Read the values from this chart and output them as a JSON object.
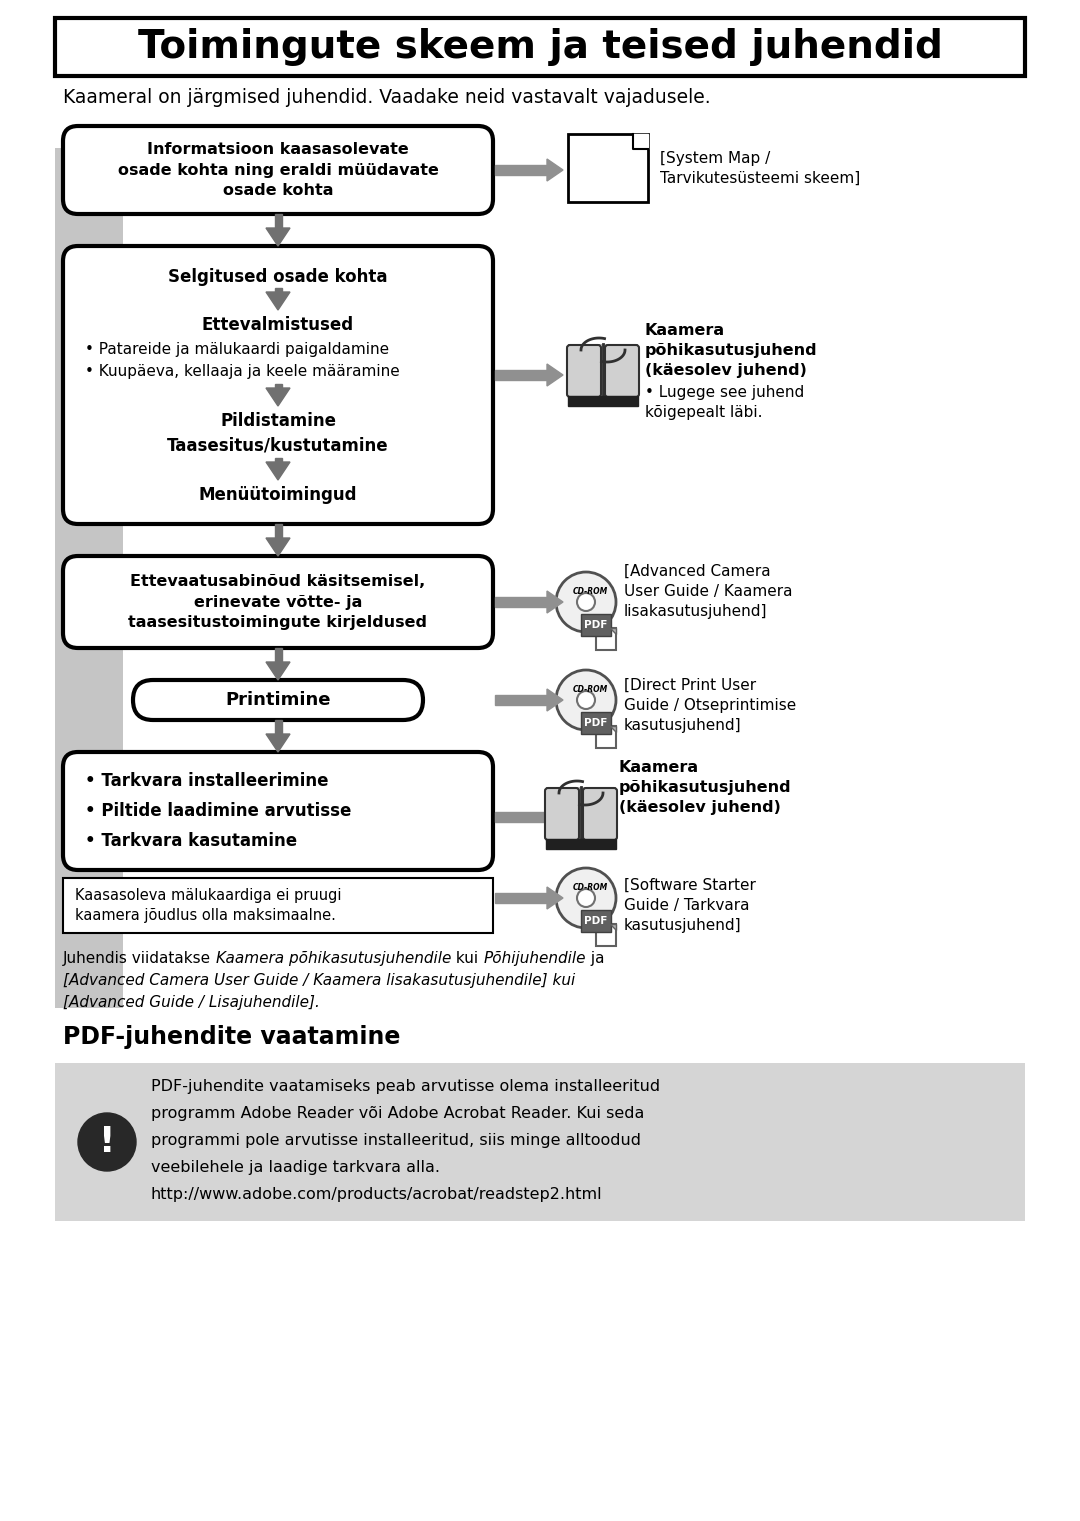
{
  "title": "Toimingute skeem ja teised juhendid",
  "subtitle": "Kaameral on järgmised juhendid. Vaadake neid vastavalt vajadusele.",
  "box1_text": "Informatsioon kaasasolevate\nosade kohta ning eraldi müüdavate\nosade kohta",
  "system_map_text": "[System Map /\nTarvikutesüsteemi skeem]",
  "box2_line1": "Selgitused osade kohta",
  "box2_line2": "Ettevalmistused",
  "box2_line3": "• Patareide ja mälukaardi paigaldamine",
  "box2_line4": "• Kuupäeva, kellaaja ja keele määramine",
  "box2_line5": "Pildistamine",
  "box2_line6": "Taasesitus/kustutamine",
  "box2_line7": "Menüütoimingud",
  "book1_bold": "Kaamera\npõhikasutusjuhend\n(käesolev juhend)",
  "book1_normal": "• Lugege see juhend\nkõigepealt läbi.",
  "box3_text": "Ettevaatusabinõud käsitsemisel,\nerinevate võtte- ja\ntaasesitustoimingute kirjeldused",
  "cdrom1_text": "[Advanced Camera\nUser Guide / Kaamera\nlisakasutusjuhend]",
  "box4_text": "Printimine",
  "cdrom2_text": "[Direct Print User\nGuide / Otseprintimise\nkasutusjuhend]",
  "box5_line1": "• Tarkvara installeerimine",
  "box5_line2": "• Piltide laadimine arvutisse",
  "box5_line3": "• Tarkvara kasutamine",
  "book2_bold": "Kaamera\npõhikasutusjuhend\n(käesolev juhend)",
  "cdrom3_text": "[Software Starter\nGuide / Tarkvara\nkasutusjuhend]",
  "note_text": "Kaasasoleva mälukaardiga ei pruugi\nkaamera jõudlus olla maksimaalne.",
  "footer_line1_normal": "Juhendis viidatakse ",
  "footer_line1_italic": "Kaamera põhikasutusjuhendile",
  "footer_line1_normal2": " kui ",
  "footer_line1_italic2": "Põhijuhendile",
  "footer_line1_normal3": " ja",
  "footer_line2_italic": "[Advanced Camera User Guide / Kaamera lisakasutusjuhendile]",
  "footer_line2_normal": " kui",
  "footer_line3_italic": "[Advanced Guide / Lisajuhendile]",
  "footer_line3_normal": ".",
  "pdf_title": "PDF-juhendite vaatamine",
  "pdf_text_line1": "PDF-juhendite vaatamiseks peab arvutisse olema installeeritud",
  "pdf_text_line2": "programm Adobe Reader või Adobe Acrobat Reader. Kui seda",
  "pdf_text_line3": "programmi pole arvutisse installeeritud, siis minge alltoodud",
  "pdf_text_line4": "veebilehele ja laadige tarkvara alla.",
  "pdf_text_line5": "http://www.adobe.com/products/acrobat/readstep2.html"
}
